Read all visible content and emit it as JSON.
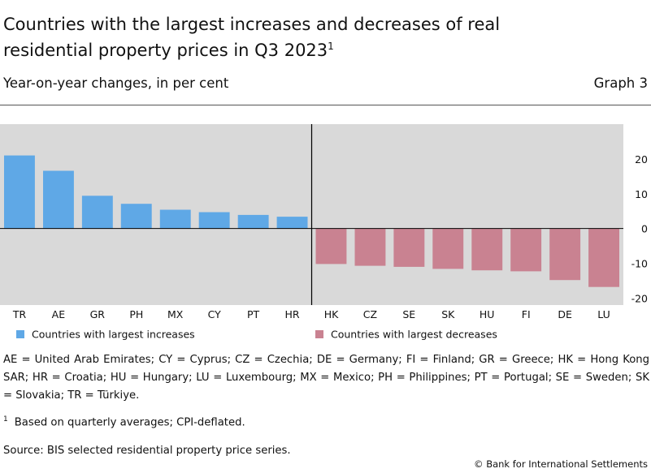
{
  "header": {
    "title": "Countries with the largest increases and decreases of real residential property prices in Q3 2023",
    "title_footnote_mark": "1",
    "subtitle": "Year-on-year changes, in per cent",
    "graph_number": "Graph 3"
  },
  "chart_data": {
    "type": "bar",
    "title": "",
    "xlabel": "",
    "ylabel": "",
    "ylim": [
      -22,
      30
    ],
    "yticks": [
      20,
      10,
      0,
      -10,
      -20
    ],
    "grid": false,
    "legend_position": "bottom",
    "background_color": "#d9d9d9",
    "categories": [
      "TR",
      "AE",
      "GR",
      "PH",
      "MX",
      "CY",
      "PT",
      "HR",
      "HK",
      "CZ",
      "SE",
      "SK",
      "HU",
      "FI",
      "DE",
      "LU"
    ],
    "series": [
      {
        "name": "Countries with largest increases",
        "color": "#5fa8e6",
        "values": [
          21.0,
          16.6,
          9.4,
          7.1,
          5.4,
          4.7,
          3.9,
          3.4,
          null,
          null,
          null,
          null,
          null,
          null,
          null,
          null
        ]
      },
      {
        "name": "Countries with largest decreases",
        "color": "#c98291",
        "values": [
          null,
          null,
          null,
          null,
          null,
          null,
          null,
          null,
          -10.2,
          -10.7,
          -11.0,
          -11.6,
          -12.0,
          -12.3,
          -14.8,
          -16.8
        ]
      }
    ]
  },
  "notes": "AE = United Arab Emirates; CY = Cyprus; CZ = Czechia; DE = Germany; FI = Finland; GR = Greece; HK = Hong Kong SAR; HR = Croatia; HU = Hungary; LU = Luxembourg; MX = Mexico; PH = Philippines; PT = Portugal; SE = Sweden; SK = Slovakia; TR = Türkiye.",
  "footnote": {
    "mark": "1",
    "text": "Based on quarterly averages; CPI-deflated."
  },
  "source": "Source: BIS selected residential property price series.",
  "copyright": "© Bank for International Settlements"
}
